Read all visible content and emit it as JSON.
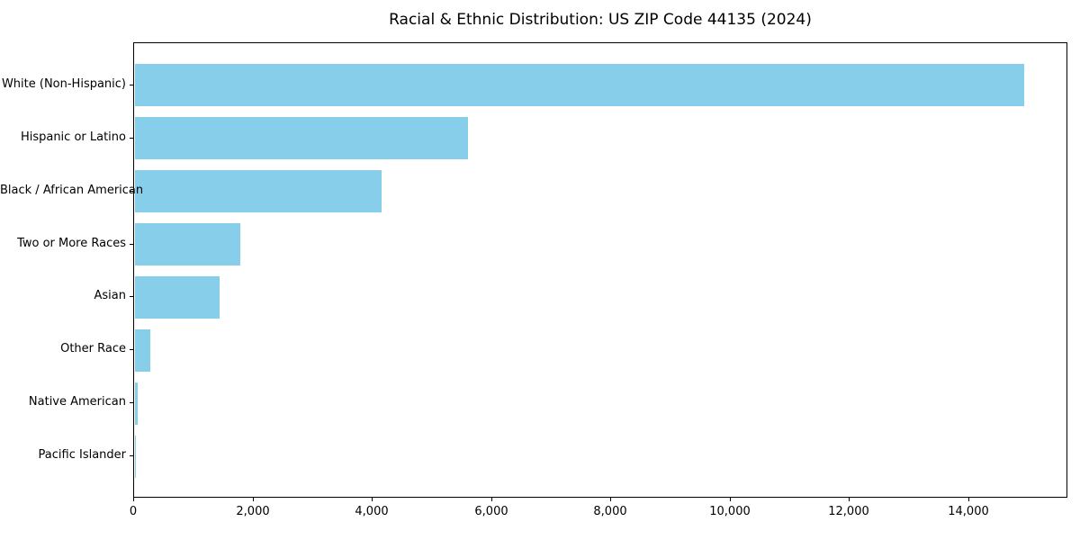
{
  "chart_data": {
    "type": "bar",
    "orientation": "horizontal",
    "title": "Racial & Ethnic Distribution: US ZIP Code 44135 (2024)",
    "categories": [
      "White (Non-Hispanic)",
      "Hispanic or Latino",
      "Black / African American",
      "Two or More Races",
      "Asian",
      "Other Race",
      "Native American",
      "Pacific Islander"
    ],
    "values": [
      14900,
      5580,
      4140,
      1760,
      1420,
      250,
      40,
      10
    ],
    "xlabel": "",
    "ylabel": "",
    "xlim": [
      0,
      15660
    ],
    "x_ticks": [
      0,
      2000,
      4000,
      6000,
      8000,
      10000,
      12000,
      14000
    ],
    "x_tick_labels": [
      "0",
      "2,000",
      "4,000",
      "6,000",
      "8,000",
      "10,000",
      "12,000",
      "14,000"
    ],
    "bar_color": "#87CEEB",
    "axis_color": "#000000",
    "background_color": "#ffffff",
    "grid": false,
    "legend": "none"
  }
}
